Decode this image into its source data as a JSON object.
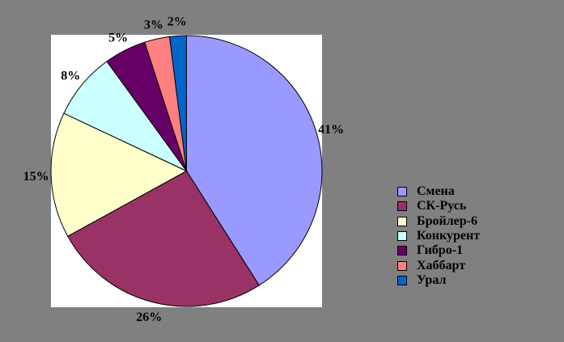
{
  "chart_data": {
    "type": "pie",
    "title": "",
    "categories": [
      "Смена",
      "СК-Русь",
      "Бройлер-6",
      "Конкурент",
      "Гибро-1",
      "Хаббарт",
      "Урал"
    ],
    "values": [
      41,
      26,
      15,
      8,
      5,
      3,
      2
    ],
    "percent_labels": [
      "41%",
      "26%",
      "15%",
      "8%",
      "5%",
      "3%",
      "2%"
    ],
    "colors": [
      "#9999FF",
      "#993366",
      "#FFFFCC",
      "#CCFFFF",
      "#660066",
      "#FF8080",
      "#0066CC"
    ],
    "legend_position": "right",
    "start_angle_deg": 0,
    "direction": "clockwise",
    "background_color": "#808080",
    "plot_background_color": "#FFFFFF",
    "slice_border_color": "#000000",
    "label_color": "#000000"
  }
}
